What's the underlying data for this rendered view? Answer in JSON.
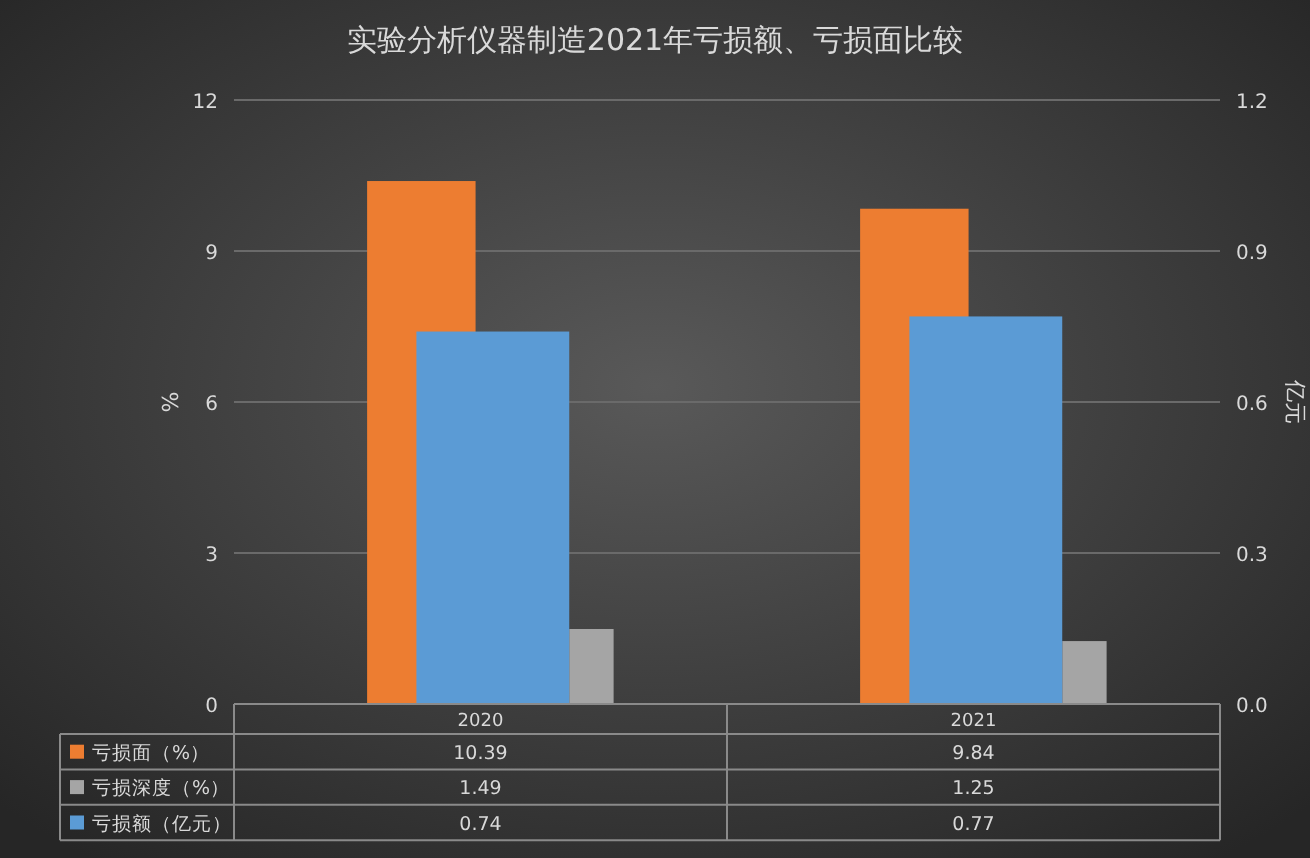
{
  "chart_data": {
    "type": "bar",
    "title": "实验分析仪器制造2021年亏损额、亏损面比较",
    "ylabel": "%",
    "y2label": "亿元",
    "categories": [
      "2020",
      "2021"
    ],
    "series": [
      {
        "name": "亏损面（%）",
        "color": "#ed7d31",
        "values": [
          10.39,
          9.84
        ]
      },
      {
        "name": "亏损深度（%）",
        "color": "#a5a5a5",
        "values": [
          1.49,
          1.25
        ]
      },
      {
        "name": "亏损额（亿元）",
        "color": "#5b9bd5",
        "values": [
          0.74,
          0.77
        ],
        "axis": "y2"
      }
    ],
    "ylim": [
      0,
      12
    ],
    "yticks": [
      0,
      3,
      6,
      9,
      12
    ],
    "y2lim": [
      0,
      1.2
    ],
    "y2ticks": [
      {
        "value": 0,
        "label": "0.0"
      },
      0.3,
      0.6,
      0.9,
      1.2
    ],
    "grid": "y",
    "data_labels": true,
    "legend": "bottom"
  }
}
